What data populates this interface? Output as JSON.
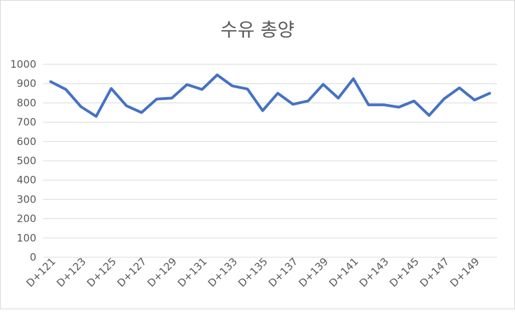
{
  "chart_data": {
    "type": "line",
    "title": "수유 총양",
    "xlabel": "",
    "ylabel": "",
    "ylim": [
      0,
      1000
    ],
    "y_ticks": [
      0,
      100,
      200,
      300,
      400,
      500,
      600,
      700,
      800,
      900,
      1000
    ],
    "grid": true,
    "legend": "none",
    "line_color": "#4472c4",
    "grid_color": "#d9d9d9",
    "x": [
      "D+121",
      "D+122",
      "D+123",
      "D+124",
      "D+125",
      "D+126",
      "D+127",
      "D+128",
      "D+129",
      "D+130",
      "D+131",
      "D+132",
      "D+133",
      "D+134",
      "D+135",
      "D+136",
      "D+137",
      "D+138",
      "D+139",
      "D+140",
      "D+141",
      "D+142",
      "D+143",
      "D+144",
      "D+145",
      "D+146",
      "D+147",
      "D+148",
      "D+149",
      "D+150"
    ],
    "x_tick_labels": [
      "D+121",
      "D+123",
      "D+125",
      "D+127",
      "D+129",
      "D+131",
      "D+133",
      "D+135",
      "D+137",
      "D+139",
      "D+141",
      "D+143",
      "D+145",
      "D+147",
      "D+149"
    ],
    "series": [
      {
        "values": [
          910,
          870,
          780,
          730,
          875,
          785,
          750,
          820,
          825,
          895,
          870,
          945,
          888,
          872,
          760,
          850,
          793,
          810,
          896,
          825,
          925,
          790,
          790,
          778,
          810,
          735,
          822,
          878,
          815,
          850
        ]
      }
    ]
  }
}
